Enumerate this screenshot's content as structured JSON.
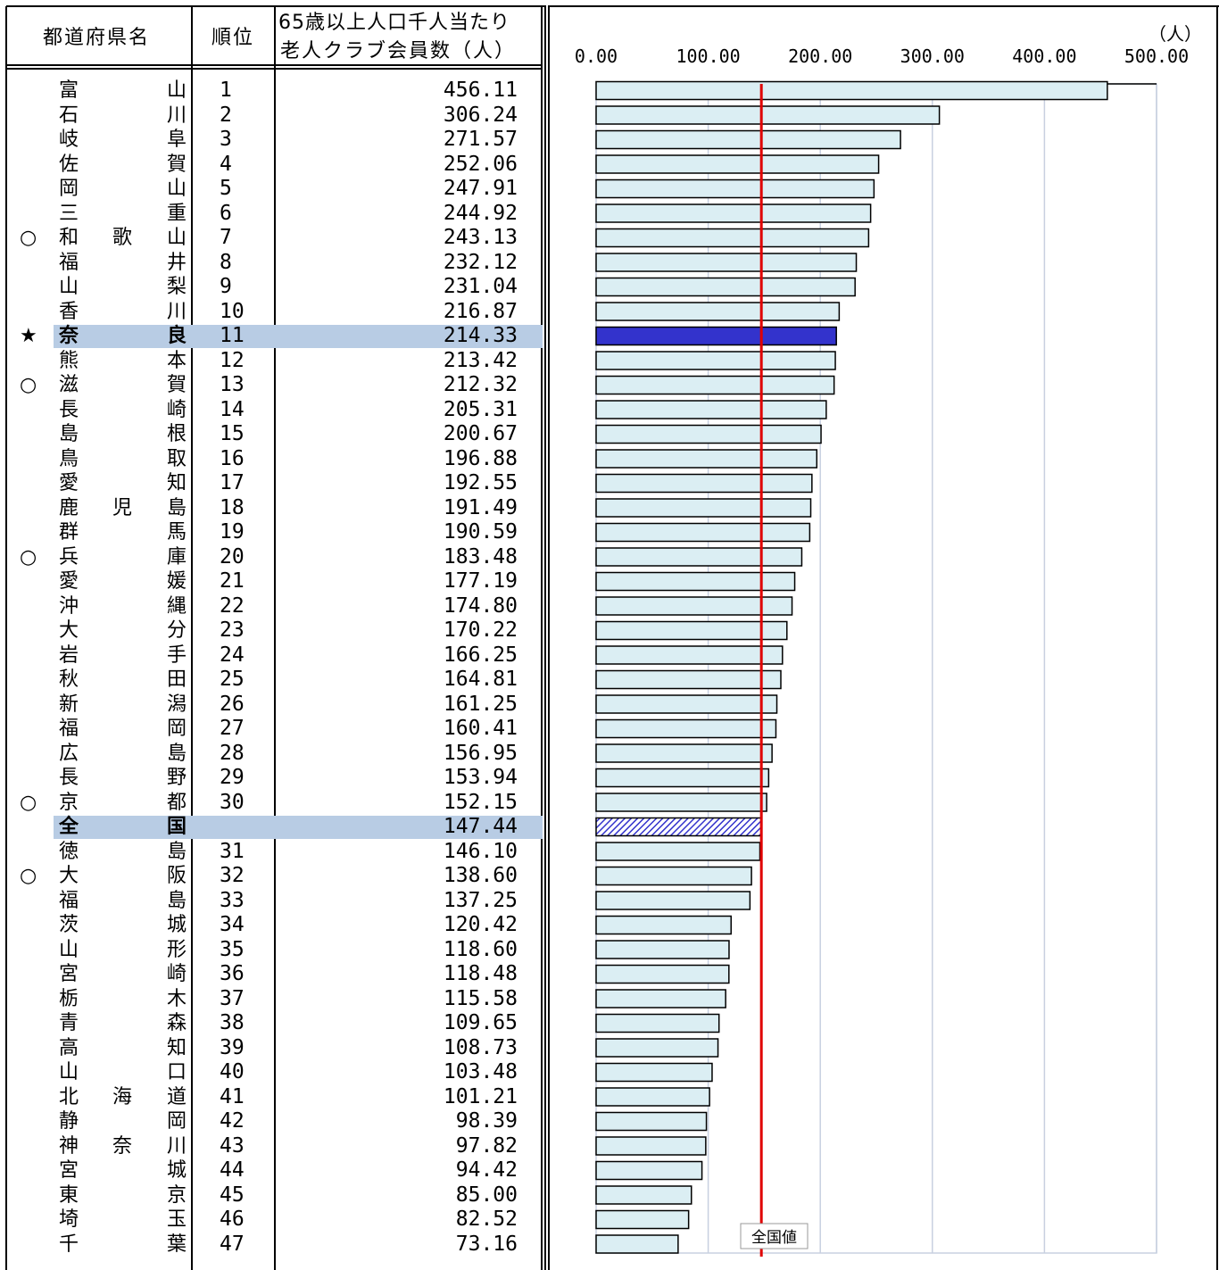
{
  "table": {
    "header_pref": "都道府県名",
    "header_rank": "順位",
    "header_value_line1": "65歳以上人口千人当たり",
    "header_value_line2": "老人クラブ会員数（人）"
  },
  "rows": [
    {
      "mark": "",
      "name": [
        "富",
        "",
        "山"
      ],
      "rank": "1",
      "value": "456.11"
    },
    {
      "mark": "",
      "name": [
        "石",
        "",
        "川"
      ],
      "rank": "2",
      "value": "306.24"
    },
    {
      "mark": "",
      "name": [
        "岐",
        "",
        "阜"
      ],
      "rank": "3",
      "value": "271.57"
    },
    {
      "mark": "",
      "name": [
        "佐",
        "",
        "賀"
      ],
      "rank": "4",
      "value": "252.06"
    },
    {
      "mark": "",
      "name": [
        "岡",
        "",
        "山"
      ],
      "rank": "5",
      "value": "247.91"
    },
    {
      "mark": "",
      "name": [
        "三",
        "",
        "重"
      ],
      "rank": "6",
      "value": "244.92"
    },
    {
      "mark": "○",
      "name": [
        "和",
        "歌",
        "山"
      ],
      "rank": "7",
      "value": "243.13"
    },
    {
      "mark": "",
      "name": [
        "福",
        "",
        "井"
      ],
      "rank": "8",
      "value": "232.12"
    },
    {
      "mark": "",
      "name": [
        "山",
        "",
        "梨"
      ],
      "rank": "9",
      "value": "231.04"
    },
    {
      "mark": "",
      "name": [
        "香",
        "",
        "川"
      ],
      "rank": "10",
      "value": "216.87"
    },
    {
      "mark": "★",
      "name": [
        "奈",
        "",
        "良"
      ],
      "rank": "11",
      "value": "214.33",
      "highlight": "self"
    },
    {
      "mark": "",
      "name": [
        "熊",
        "",
        "本"
      ],
      "rank": "12",
      "value": "213.42"
    },
    {
      "mark": "○",
      "name": [
        "滋",
        "",
        "賀"
      ],
      "rank": "13",
      "value": "212.32"
    },
    {
      "mark": "",
      "name": [
        "長",
        "",
        "崎"
      ],
      "rank": "14",
      "value": "205.31"
    },
    {
      "mark": "",
      "name": [
        "島",
        "",
        "根"
      ],
      "rank": "15",
      "value": "200.67"
    },
    {
      "mark": "",
      "name": [
        "鳥",
        "",
        "取"
      ],
      "rank": "16",
      "value": "196.88"
    },
    {
      "mark": "",
      "name": [
        "愛",
        "",
        "知"
      ],
      "rank": "17",
      "value": "192.55"
    },
    {
      "mark": "",
      "name": [
        "鹿",
        "児",
        "島"
      ],
      "rank": "18",
      "value": "191.49"
    },
    {
      "mark": "",
      "name": [
        "群",
        "",
        "馬"
      ],
      "rank": "19",
      "value": "190.59"
    },
    {
      "mark": "○",
      "name": [
        "兵",
        "",
        "庫"
      ],
      "rank": "20",
      "value": "183.48"
    },
    {
      "mark": "",
      "name": [
        "愛",
        "",
        "媛"
      ],
      "rank": "21",
      "value": "177.19"
    },
    {
      "mark": "",
      "name": [
        "沖",
        "",
        "縄"
      ],
      "rank": "22",
      "value": "174.80"
    },
    {
      "mark": "",
      "name": [
        "大",
        "",
        "分"
      ],
      "rank": "23",
      "value": "170.22"
    },
    {
      "mark": "",
      "name": [
        "岩",
        "",
        "手"
      ],
      "rank": "24",
      "value": "166.25"
    },
    {
      "mark": "",
      "name": [
        "秋",
        "",
        "田"
      ],
      "rank": "25",
      "value": "164.81"
    },
    {
      "mark": "",
      "name": [
        "新",
        "",
        "潟"
      ],
      "rank": "26",
      "value": "161.25"
    },
    {
      "mark": "",
      "name": [
        "福",
        "",
        "岡"
      ],
      "rank": "27",
      "value": "160.41"
    },
    {
      "mark": "",
      "name": [
        "広",
        "",
        "島"
      ],
      "rank": "28",
      "value": "156.95"
    },
    {
      "mark": "",
      "name": [
        "長",
        "",
        "野"
      ],
      "rank": "29",
      "value": "153.94"
    },
    {
      "mark": "○",
      "name": [
        "京",
        "",
        "都"
      ],
      "rank": "30",
      "value": "152.15"
    },
    {
      "mark": "",
      "name": [
        "全",
        "",
        "国"
      ],
      "rank": "",
      "value": "147.44",
      "highlight": "national"
    },
    {
      "mark": "",
      "name": [
        "徳",
        "",
        "島"
      ],
      "rank": "31",
      "value": "146.10"
    },
    {
      "mark": "○",
      "name": [
        "大",
        "",
        "阪"
      ],
      "rank": "32",
      "value": "138.60"
    },
    {
      "mark": "",
      "name": [
        "福",
        "",
        "島"
      ],
      "rank": "33",
      "value": "137.25"
    },
    {
      "mark": "",
      "name": [
        "茨",
        "",
        "城"
      ],
      "rank": "34",
      "value": "120.42"
    },
    {
      "mark": "",
      "name": [
        "山",
        "",
        "形"
      ],
      "rank": "35",
      "value": "118.60"
    },
    {
      "mark": "",
      "name": [
        "宮",
        "",
        "崎"
      ],
      "rank": "36",
      "value": "118.48"
    },
    {
      "mark": "",
      "name": [
        "栃",
        "",
        "木"
      ],
      "rank": "37",
      "value": "115.58"
    },
    {
      "mark": "",
      "name": [
        "青",
        "",
        "森"
      ],
      "rank": "38",
      "value": "109.65"
    },
    {
      "mark": "",
      "name": [
        "高",
        "",
        "知"
      ],
      "rank": "39",
      "value": "108.73"
    },
    {
      "mark": "",
      "name": [
        "山",
        "",
        "口"
      ],
      "rank": "40",
      "value": "103.48"
    },
    {
      "mark": "",
      "name": [
        "北",
        "海",
        "道"
      ],
      "rank": "41",
      "value": "101.21"
    },
    {
      "mark": "",
      "name": [
        "静",
        "",
        "岡"
      ],
      "rank": "42",
      "value": "98.39"
    },
    {
      "mark": "",
      "name": [
        "神",
        "奈",
        "川"
      ],
      "rank": "43",
      "value": "97.82"
    },
    {
      "mark": "",
      "name": [
        "宮",
        "",
        "城"
      ],
      "rank": "44",
      "value": "94.42"
    },
    {
      "mark": "",
      "name": [
        "東",
        "",
        "京"
      ],
      "rank": "45",
      "value": "85.00"
    },
    {
      "mark": "",
      "name": [
        "埼",
        "",
        "玉"
      ],
      "rank": "46",
      "value": "82.52"
    },
    {
      "mark": "",
      "name": [
        "千",
        "",
        "葉"
      ],
      "rank": "47",
      "value": "73.16"
    }
  ],
  "chart_data": {
    "type": "bar",
    "orientation": "horizontal",
    "unit_label": "（人）",
    "xlim": [
      0,
      500
    ],
    "ticks": [
      "0.00",
      "100.00",
      "200.00",
      "300.00",
      "400.00",
      "500.00"
    ],
    "grid": true,
    "reference_line": {
      "label": "全国値",
      "value": 147.44,
      "color": "#e00000"
    },
    "colors": {
      "default": "#dbeef3",
      "self": "#3333cc",
      "national": "hatched-blue",
      "highlight_row": "#b8cce4"
    },
    "values": [
      456.11,
      306.24,
      271.57,
      252.06,
      247.91,
      244.92,
      243.13,
      232.12,
      231.04,
      216.87,
      214.33,
      213.42,
      212.32,
      205.31,
      200.67,
      196.88,
      192.55,
      191.49,
      190.59,
      183.48,
      177.19,
      174.8,
      170.22,
      166.25,
      164.81,
      161.25,
      160.41,
      156.95,
      153.94,
      152.15,
      147.44,
      146.1,
      138.6,
      137.25,
      120.42,
      118.6,
      118.48,
      115.58,
      109.65,
      108.73,
      103.48,
      101.21,
      98.39,
      97.82,
      94.42,
      85.0,
      82.52,
      73.16
    ]
  }
}
